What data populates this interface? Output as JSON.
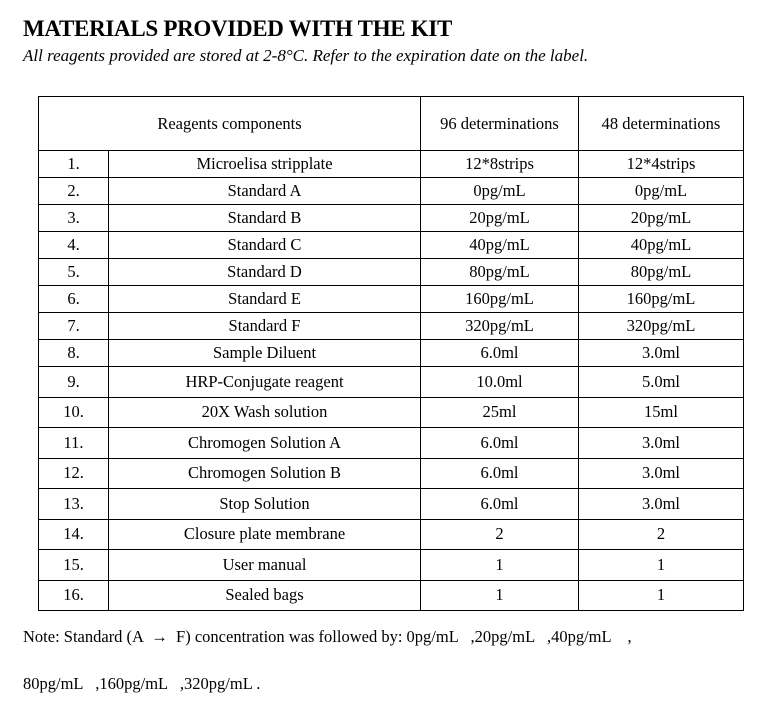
{
  "title": "MATERIALS PROVIDED WITH THE KIT",
  "subtitle": "All reagents provided are stored at 2-8°C. Refer to the expiration date on the label.",
  "table": {
    "headers": [
      "Reagents components",
      "96 determinations",
      "48 determinations"
    ],
    "rows": [
      {
        "no": "1.",
        "name": "Microelisa stripplate",
        "d96": "12*8strips",
        "d48": "12*4strips"
      },
      {
        "no": "2.",
        "name": "Standard A",
        "d96": "0pg/mL",
        "d48": "0pg/mL"
      },
      {
        "no": "3.",
        "name": "Standard B",
        "d96": "20pg/mL",
        "d48": "20pg/mL"
      },
      {
        "no": "4.",
        "name": "Standard C",
        "d96": "40pg/mL",
        "d48": "40pg/mL"
      },
      {
        "no": "5.",
        "name": "Standard D",
        "d96": "80pg/mL",
        "d48": "80pg/mL"
      },
      {
        "no": "6.",
        "name": "Standard E",
        "d96": "160pg/mL",
        "d48": "160pg/mL"
      },
      {
        "no": "7.",
        "name": "Standard F",
        "d96": "320pg/mL",
        "d48": "320pg/mL"
      },
      {
        "no": "8.",
        "name": "Sample Diluent",
        "d96": "6.0ml",
        "d48": "3.0ml"
      },
      {
        "no": "9.",
        "name": "HRP-Conjugate reagent",
        "d96": "10.0ml",
        "d48": "5.0ml"
      },
      {
        "no": "10.",
        "name": "20X Wash solution",
        "d96": "25ml",
        "d48": "15ml"
      },
      {
        "no": "11.",
        "name": "Chromogen Solution A",
        "d96": "6.0ml",
        "d48": "3.0ml"
      },
      {
        "no": "12.",
        "name": "Chromogen Solution B",
        "d96": "6.0ml",
        "d48": "3.0ml"
      },
      {
        "no": "13.",
        "name": "Stop Solution",
        "d96": "6.0ml",
        "d48": "3.0ml"
      },
      {
        "no": "14.",
        "name": "Closure plate membrane",
        "d96": "2",
        "d48": "2"
      },
      {
        "no": "15.",
        "name": "User manual",
        "d96": "1",
        "d48": "1"
      },
      {
        "no": "16.",
        "name": "Sealed bags",
        "d96": "1",
        "d48": "1"
      }
    ]
  },
  "note": {
    "line1": "Note: Standard (A  →  F) concentration was followed by: 0pg/mL   ,20pg/mL   ,40pg/mL    ,",
    "line2": "80pg/mL   ,160pg/mL   ,320pg/mL ."
  }
}
